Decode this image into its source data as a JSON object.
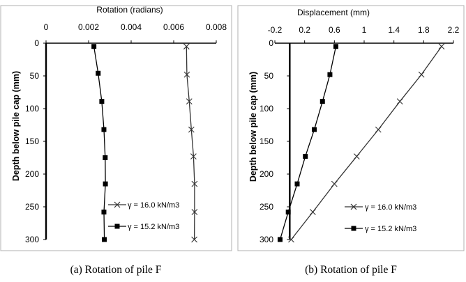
{
  "chart_data": [
    {
      "type": "line",
      "xlabel": "Rotation (radians)",
      "ylabel": "Depth below pile cap (mm)",
      "xlim": [
        0,
        0.008
      ],
      "ylim": [
        0,
        300
      ],
      "y_inverted": true,
      "x_axis_position": "top",
      "xticks": [
        "0",
        "0.002",
        "0.004",
        "0.006",
        "0.008"
      ],
      "yticks": [
        "0",
        "50",
        "100",
        "150",
        "200",
        "250",
        "300"
      ],
      "series": [
        {
          "name": "γ = 16.0 kN/m3",
          "marker": "x",
          "points": [
            [
              0.0066,
              5
            ],
            [
              0.00662,
              48
            ],
            [
              0.00673,
              89
            ],
            [
              0.00683,
              132
            ],
            [
              0.00693,
              173
            ],
            [
              0.00698,
              215
            ],
            [
              0.00698,
              258
            ],
            [
              0.00697,
              300
            ]
          ]
        },
        {
          "name": "γ = 15.2 kN/m3",
          "marker": "square",
          "points": [
            [
              0.00225,
              5
            ],
            [
              0.00245,
              46
            ],
            [
              0.00262,
              89
            ],
            [
              0.00272,
              132
            ],
            [
              0.00278,
              175
            ],
            [
              0.00279,
              215
            ],
            [
              0.00272,
              258
            ],
            [
              0.00274,
              300
            ]
          ]
        }
      ],
      "legend_position": "bottom-right",
      "grid": false,
      "caption": "(a) Rotation of pile F"
    },
    {
      "type": "line",
      "xlabel": "Displacement (mm)",
      "ylabel": "Depth below pile cap (mm)",
      "xlim": [
        -0.2,
        2.2
      ],
      "ylim": [
        0,
        300
      ],
      "y_inverted": true,
      "x_axis_position": "top",
      "xticks": [
        "-0.2",
        "0.2",
        "0.6",
        "1",
        "1.4",
        "1.8",
        "2.2"
      ],
      "yticks": [
        "0",
        "50",
        "100",
        "150",
        "200",
        "250",
        "300"
      ],
      "series": [
        {
          "name": "γ = 16.0 kN/m3",
          "marker": "x",
          "points": [
            [
              2.04,
              5
            ],
            [
              1.77,
              48
            ],
            [
              1.48,
              89
            ],
            [
              1.19,
              132
            ],
            [
              0.9,
              173
            ],
            [
              0.6,
              215
            ],
            [
              0.31,
              258
            ],
            [
              0.02,
              300
            ]
          ]
        },
        {
          "name": "γ = 15.2 kN/m3",
          "marker": "square",
          "points": [
            [
              0.62,
              5
            ],
            [
              0.54,
              48
            ],
            [
              0.44,
              89
            ],
            [
              0.33,
              132
            ],
            [
              0.21,
              173
            ],
            [
              0.1,
              215
            ],
            [
              -0.02,
              258
            ],
            [
              -0.13,
              300
            ]
          ]
        }
      ],
      "legend_position": "bottom-right",
      "grid": false,
      "caption": "(b) Rotation of pile F"
    }
  ]
}
